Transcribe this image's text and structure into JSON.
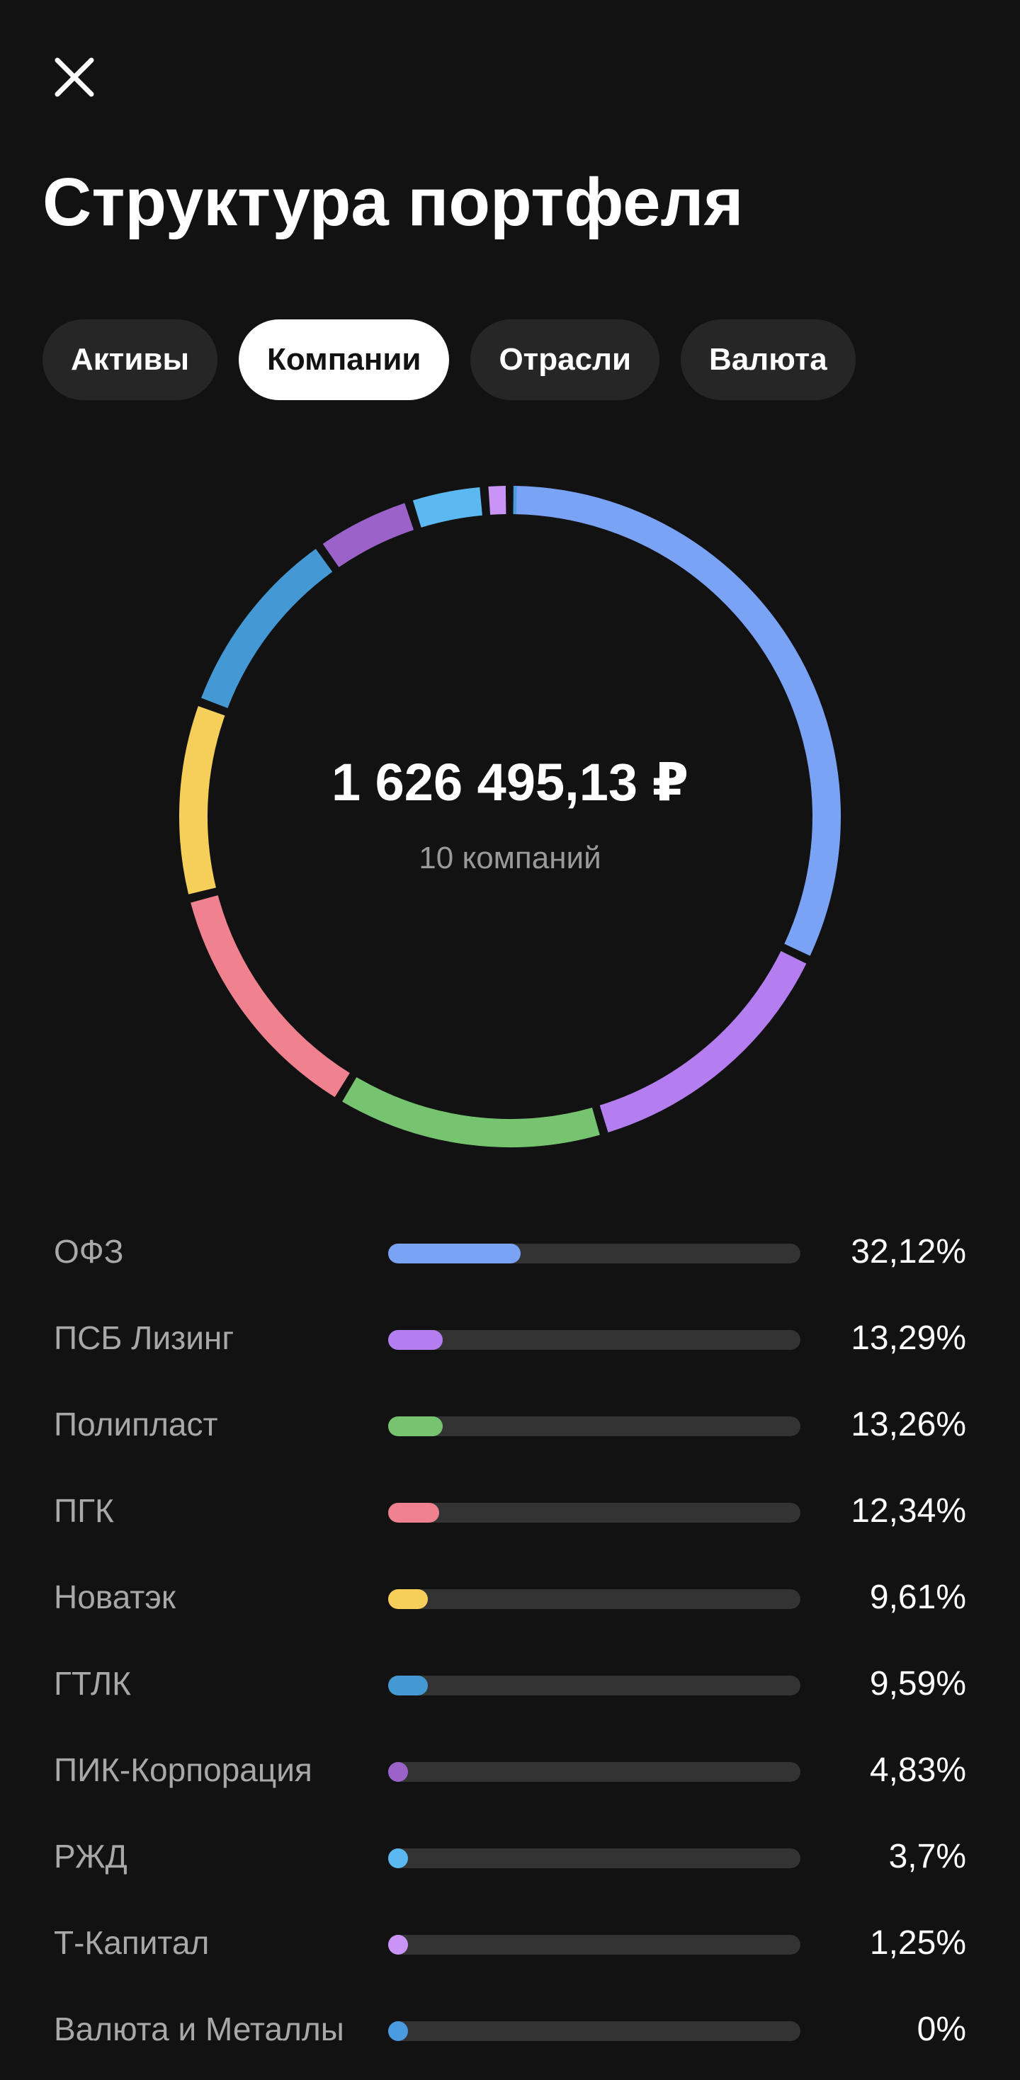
{
  "header": {
    "title": "Структура портфеля",
    "close_icon": "close-icon"
  },
  "tabs": [
    {
      "label": "Активы",
      "active": false
    },
    {
      "label": "Компании",
      "active": true
    },
    {
      "label": "Отрасли",
      "active": false
    },
    {
      "label": "Валюта",
      "active": false
    }
  ],
  "summary": {
    "total": "1 626 495,13 ₽",
    "count_label": "10 компаний"
  },
  "colors": {
    "background": "#121212",
    "track": "#333333",
    "active_tab": "#ffffff",
    "inactive_tab": "#262626"
  },
  "chart_data": {
    "type": "pie",
    "donut": true,
    "categories": [
      "ОФЗ",
      "ПСБ Лизинг",
      "Полипласт",
      "ПГК",
      "Новатэк",
      "ГТЛК",
      "ПИК-Корпорация",
      "РЖД",
      "Т-Капитал",
      "Валюта и Металлы"
    ],
    "values": [
      32.12,
      13.29,
      13.26,
      12.34,
      9.61,
      9.59,
      4.83,
      3.7,
      1.25,
      0
    ],
    "labels": [
      "32,12%",
      "13,29%",
      "13,26%",
      "12,34%",
      "9,61%",
      "9,59%",
      "4,83%",
      "3,7%",
      "1,25%",
      "0%"
    ],
    "colors": [
      "#7ba3f5",
      "#b57ef0",
      "#77c470",
      "#f0818f",
      "#f5cf5a",
      "#4499d4",
      "#9b63c9",
      "#5bb8f0",
      "#c994f5",
      "#4a9be0"
    ]
  }
}
